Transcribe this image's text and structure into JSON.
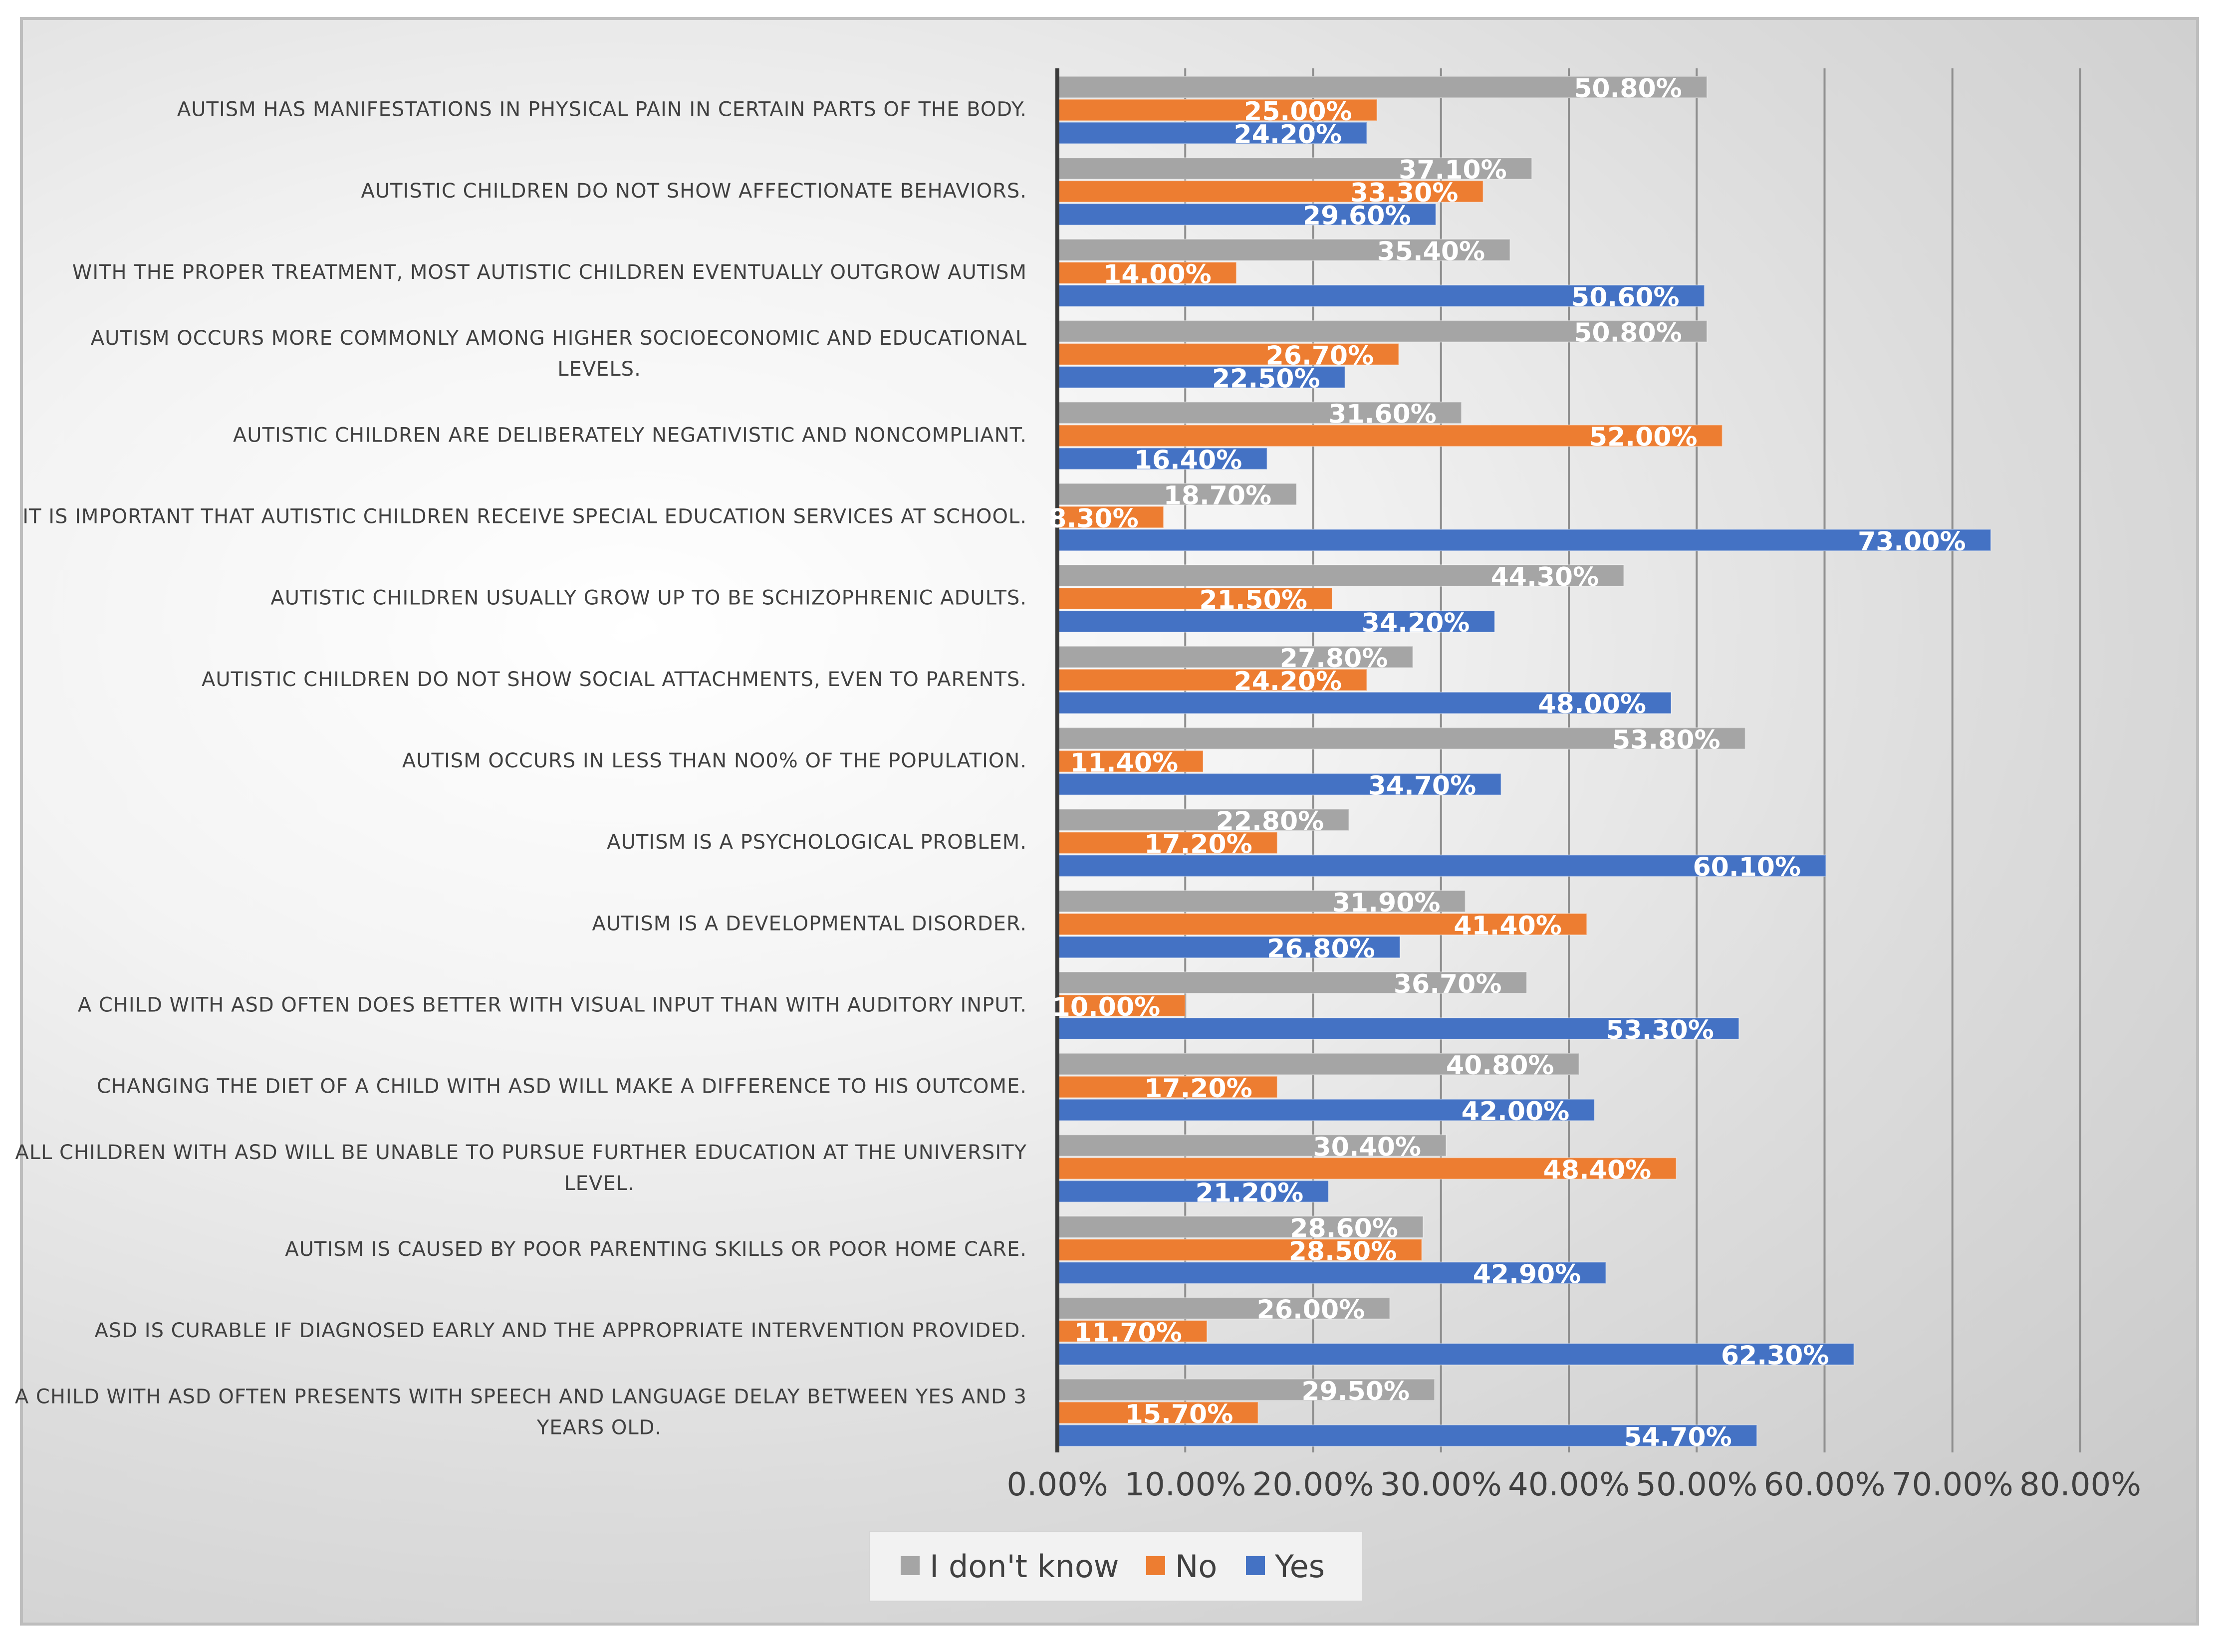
{
  "chart_data": {
    "type": "bar",
    "orientation": "horizontal",
    "title": "",
    "xlabel": "",
    "ylabel": "",
    "xlim": [
      0,
      80
    ],
    "x_ticks": [
      "0.00%",
      "10.00%",
      "20.00%",
      "30.00%",
      "40.00%",
      "50.00%",
      "60.00%",
      "70.00%",
      "80.00%"
    ],
    "grid": true,
    "legend_position": "bottom",
    "categories": [
      "AUTISM HAS MANIFESTATIONS IN PHYSICAL PAIN IN CERTAIN PARTS OF THE BODY.",
      "AUTISTIC CHILDREN DO NOT SHOW AFFECTIONATE BEHAVIORS.",
      "WITH THE PROPER TREATMENT, MOST AUTISTIC CHILDREN EVENTUALLY OUTGROW AUTISM",
      "AUTISM OCCURS MORE COMMONLY AMONG HIGHER SOCIOECONOMIC AND EDUCATIONAL LEVELS.",
      "AUTISTIC CHILDREN ARE DELIBERATELY NEGATIVISTIC AND NONCOMPLIANT.",
      "IT IS IMPORTANT THAT AUTISTIC CHILDREN RECEIVE SPECIAL EDUCATION SERVICES AT SCHOOL.",
      "AUTISTIC CHILDREN USUALLY GROW UP TO BE SCHIZOPHRENIC ADULTS.",
      "AUTISTIC CHILDREN DO NOT SHOW SOCIAL ATTACHMENTS, EVEN TO PARENTS.",
      "AUTISM OCCURS IN LESS THAN NO0% OF THE POPULATION.",
      "AUTISM IS A PSYCHOLOGICAL PROBLEM.",
      "AUTISM IS A DEVELOPMENTAL DISORDER.",
      "A CHILD WITH ASD OFTEN DOES BETTER WITH VISUAL INPUT THAN WITH AUDITORY INPUT.",
      "CHANGING THE DIET OF A CHILD WITH ASD WILL MAKE A DIFFERENCE TO HIS OUTCOME.",
      "ALL CHILDREN WITH ASD WILL BE UNABLE TO PURSUE FURTHER EDUCATION AT THE UNIVERSITY LEVEL.",
      "AUTISM IS CAUSED BY POOR PARENTING SKILLS OR POOR HOME CARE.",
      "ASD IS CURABLE IF DIAGNOSED EARLY AND THE APPROPRIATE INTERVENTION PROVIDED.",
      "A CHILD WITH ASD OFTEN PRESENTS WITH SPEECH AND LANGUAGE DELAY BETWEEN YES AND 3 YEARS OLD."
    ],
    "category_lines": [
      [
        "AUTISM HAS MANIFESTATIONS IN PHYSICAL PAIN IN CERTAIN PARTS OF THE BODY."
      ],
      [
        "AUTISTIC CHILDREN DO NOT SHOW AFFECTIONATE BEHAVIORS."
      ],
      [
        "WITH THE PROPER TREATMENT, MOST AUTISTIC CHILDREN EVENTUALLY OUTGROW AUTISM"
      ],
      [
        "AUTISM OCCURS MORE COMMONLY AMONG HIGHER SOCIOECONOMIC AND EDUCATIONAL",
        "LEVELS."
      ],
      [
        "AUTISTIC CHILDREN ARE DELIBERATELY NEGATIVISTIC AND NONCOMPLIANT."
      ],
      [
        "IT IS IMPORTANT THAT AUTISTIC CHILDREN RECEIVE SPECIAL EDUCATION SERVICES AT SCHOOL."
      ],
      [
        "AUTISTIC CHILDREN USUALLY GROW UP TO BE SCHIZOPHRENIC ADULTS."
      ],
      [
        "AUTISTIC CHILDREN DO NOT SHOW SOCIAL ATTACHMENTS, EVEN TO PARENTS."
      ],
      [
        "AUTISM OCCURS IN LESS THAN NO0% OF THE POPULATION."
      ],
      [
        "AUTISM IS A PSYCHOLOGICAL PROBLEM."
      ],
      [
        "AUTISM IS A DEVELOPMENTAL DISORDER."
      ],
      [
        "A CHILD WITH ASD OFTEN DOES BETTER WITH VISUAL INPUT THAN WITH AUDITORY INPUT."
      ],
      [
        "CHANGING THE DIET OF A CHILD WITH ASD WILL MAKE A DIFFERENCE TO HIS OUTCOME."
      ],
      [
        "ALL CHILDREN WITH ASD WILL BE UNABLE TO PURSUE FURTHER EDUCATION AT THE UNIVERSITY",
        "LEVEL."
      ],
      [
        "AUTISM IS CAUSED BY POOR PARENTING SKILLS OR POOR HOME CARE."
      ],
      [
        "ASD IS CURABLE IF DIAGNOSED EARLY AND THE APPROPRIATE INTERVENTION PROVIDED."
      ],
      [
        "A CHILD WITH ASD OFTEN PRESENTS WITH SPEECH AND LANGUAGE DELAY BETWEEN YES AND 3",
        "YEARS OLD."
      ]
    ],
    "series": [
      {
        "name": "I don't know",
        "color": "#a5a5a5",
        "values": [
          50.8,
          37.1,
          35.4,
          50.8,
          31.6,
          18.7,
          44.3,
          27.8,
          53.8,
          22.8,
          31.9,
          36.7,
          40.8,
          30.4,
          28.6,
          26.0,
          29.5
        ],
        "labels": [
          "50.80%",
          "37.10%",
          "35.40%",
          "50.80%",
          "31.60%",
          "18.70%",
          "44.30%",
          "27.80%",
          "53.80%",
          "22.80%",
          "31.90%",
          "36.70%",
          "40.80%",
          "30.40%",
          "28.60%",
          "26.00%",
          "29.50%"
        ]
      },
      {
        "name": "No",
        "color": "#ed7d31",
        "values": [
          25.0,
          33.3,
          14.0,
          26.7,
          52.0,
          8.3,
          21.5,
          24.2,
          11.4,
          17.2,
          41.4,
          10.0,
          17.2,
          48.4,
          28.5,
          11.7,
          15.7
        ],
        "labels": [
          "25.00%",
          "33.30%",
          "14.00%",
          "26.70%",
          "52.00%",
          "8.30%",
          "21.50%",
          "24.20%",
          "11.40%",
          "17.20%",
          "41.40%",
          "10.00%",
          "17.20%",
          "48.40%",
          "28.50%",
          "11.70%",
          "15.70%"
        ]
      },
      {
        "name": "Yes",
        "color": "#4472c4",
        "values": [
          24.2,
          29.6,
          50.6,
          22.5,
          16.4,
          73.0,
          34.2,
          48.0,
          34.7,
          60.1,
          26.8,
          53.3,
          42.0,
          21.2,
          42.9,
          62.3,
          54.7
        ],
        "labels": [
          "24.20%",
          "29.60%",
          "50.60%",
          "22.50%",
          "16.40%",
          "73.00%",
          "34.20%",
          "48.00%",
          "34.70%",
          "60.10%",
          "26.80%",
          "53.30%",
          "42.00%",
          "21.20%",
          "42.90%",
          "62.30%",
          "54.70%"
        ]
      }
    ],
    "legend": [
      "I don't know",
      "No",
      "Yes"
    ]
  }
}
